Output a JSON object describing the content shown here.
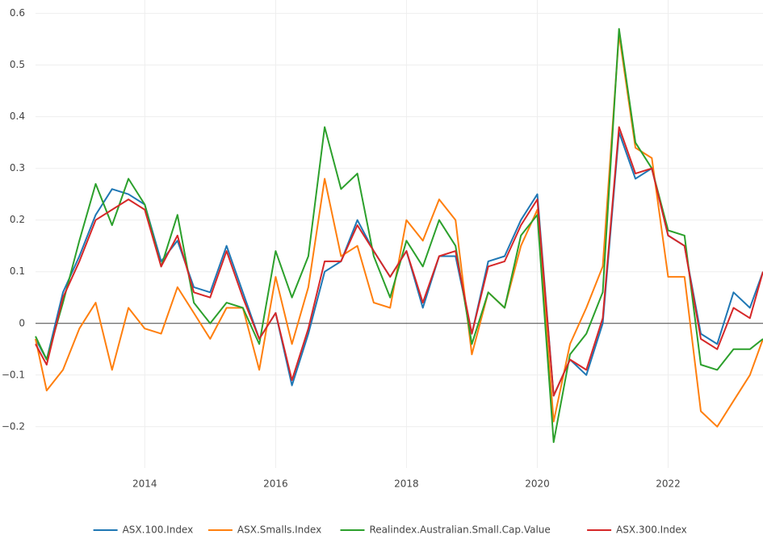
{
  "chart_data": {
    "type": "line",
    "x": [
      2012.33,
      2012.5,
      2012.75,
      2013.0,
      2013.25,
      2013.5,
      2013.75,
      2014.0,
      2014.25,
      2014.5,
      2014.75,
      2015.0,
      2015.25,
      2015.5,
      2015.75,
      2016.0,
      2016.25,
      2016.5,
      2016.75,
      2017.0,
      2017.25,
      2017.5,
      2017.75,
      2018.0,
      2018.25,
      2018.5,
      2018.75,
      2019.0,
      2019.25,
      2019.5,
      2019.75,
      2020.0,
      2020.25,
      2020.5,
      2020.75,
      2021.0,
      2021.25,
      2021.5,
      2021.75,
      2022.0,
      2022.25,
      2022.5,
      2022.75,
      2023.0,
      2023.25,
      2023.45
    ],
    "series": [
      {
        "name": "ASX.100.Index",
        "color": "#1f77b4",
        "values": [
          -0.03,
          -0.07,
          0.06,
          0.13,
          0.21,
          0.26,
          0.25,
          0.23,
          0.12,
          0.16,
          0.07,
          0.06,
          0.15,
          0.06,
          -0.03,
          0.02,
          -0.12,
          -0.02,
          0.1,
          0.12,
          0.2,
          0.14,
          0.09,
          0.14,
          0.03,
          0.13,
          0.13,
          -0.02,
          0.12,
          0.13,
          0.2,
          0.25,
          -0.14,
          -0.07,
          -0.1,
          0.0,
          0.37,
          0.28,
          0.3,
          0.17,
          0.15,
          -0.02,
          -0.04,
          0.06,
          0.03,
          0.1
        ]
      },
      {
        "name": "ASX.Smalls.Index",
        "color": "#ff7f0e",
        "values": [
          -0.03,
          -0.13,
          -0.09,
          -0.01,
          0.04,
          -0.09,
          0.03,
          -0.01,
          -0.02,
          0.07,
          0.02,
          -0.03,
          0.03,
          0.03,
          -0.09,
          0.09,
          -0.04,
          0.07,
          0.28,
          0.13,
          0.15,
          0.04,
          0.03,
          0.2,
          0.16,
          0.24,
          0.2,
          -0.06,
          0.06,
          0.03,
          0.15,
          0.22,
          -0.19,
          -0.04,
          0.03,
          0.11,
          0.56,
          0.34,
          0.32,
          0.09,
          0.09,
          -0.17,
          -0.2,
          -0.15,
          -0.1,
          -0.03
        ]
      },
      {
        "name": "Realindex.Australian.Small.Cap.Value",
        "color": "#2ca02c",
        "values": [
          -0.025,
          -0.07,
          0.04,
          0.16,
          0.27,
          0.19,
          0.28,
          0.23,
          0.11,
          0.21,
          0.04,
          0.0,
          0.04,
          0.03,
          -0.04,
          0.14,
          0.05,
          0.13,
          0.38,
          0.26,
          0.29,
          0.13,
          0.05,
          0.16,
          0.11,
          0.2,
          0.15,
          -0.04,
          0.06,
          0.03,
          0.17,
          0.21,
          -0.23,
          -0.06,
          -0.02,
          0.06,
          0.57,
          0.35,
          0.3,
          0.18,
          0.17,
          -0.08,
          -0.09,
          -0.05,
          -0.05,
          -0.03
        ]
      },
      {
        "name": "ASX.300.Index",
        "color": "#d62728",
        "values": [
          -0.04,
          -0.08,
          0.05,
          0.12,
          0.2,
          0.22,
          0.24,
          0.22,
          0.11,
          0.17,
          0.06,
          0.05,
          0.14,
          0.05,
          -0.03,
          0.02,
          -0.11,
          -0.01,
          0.12,
          0.12,
          0.19,
          0.14,
          0.09,
          0.14,
          0.04,
          0.13,
          0.14,
          -0.02,
          0.11,
          0.12,
          0.19,
          0.24,
          -0.14,
          -0.07,
          -0.09,
          0.01,
          0.38,
          0.29,
          0.3,
          0.17,
          0.15,
          -0.03,
          -0.05,
          0.03,
          0.01,
          0.1
        ]
      }
    ],
    "xlim": [
      2012.33,
      2023.45
    ],
    "xticks": [
      2014,
      2016,
      2018,
      2020,
      2022
    ],
    "ylim": [
      -0.28,
      0.626
    ],
    "yticks": [
      {
        "value": -0.2,
        "label": "−0.2"
      },
      {
        "value": -0.1,
        "label": "−0.1"
      },
      0,
      0.1,
      0.2,
      0.3,
      0.4,
      0.5,
      0.6
    ],
    "grid": true,
    "legend": "bottom"
  }
}
